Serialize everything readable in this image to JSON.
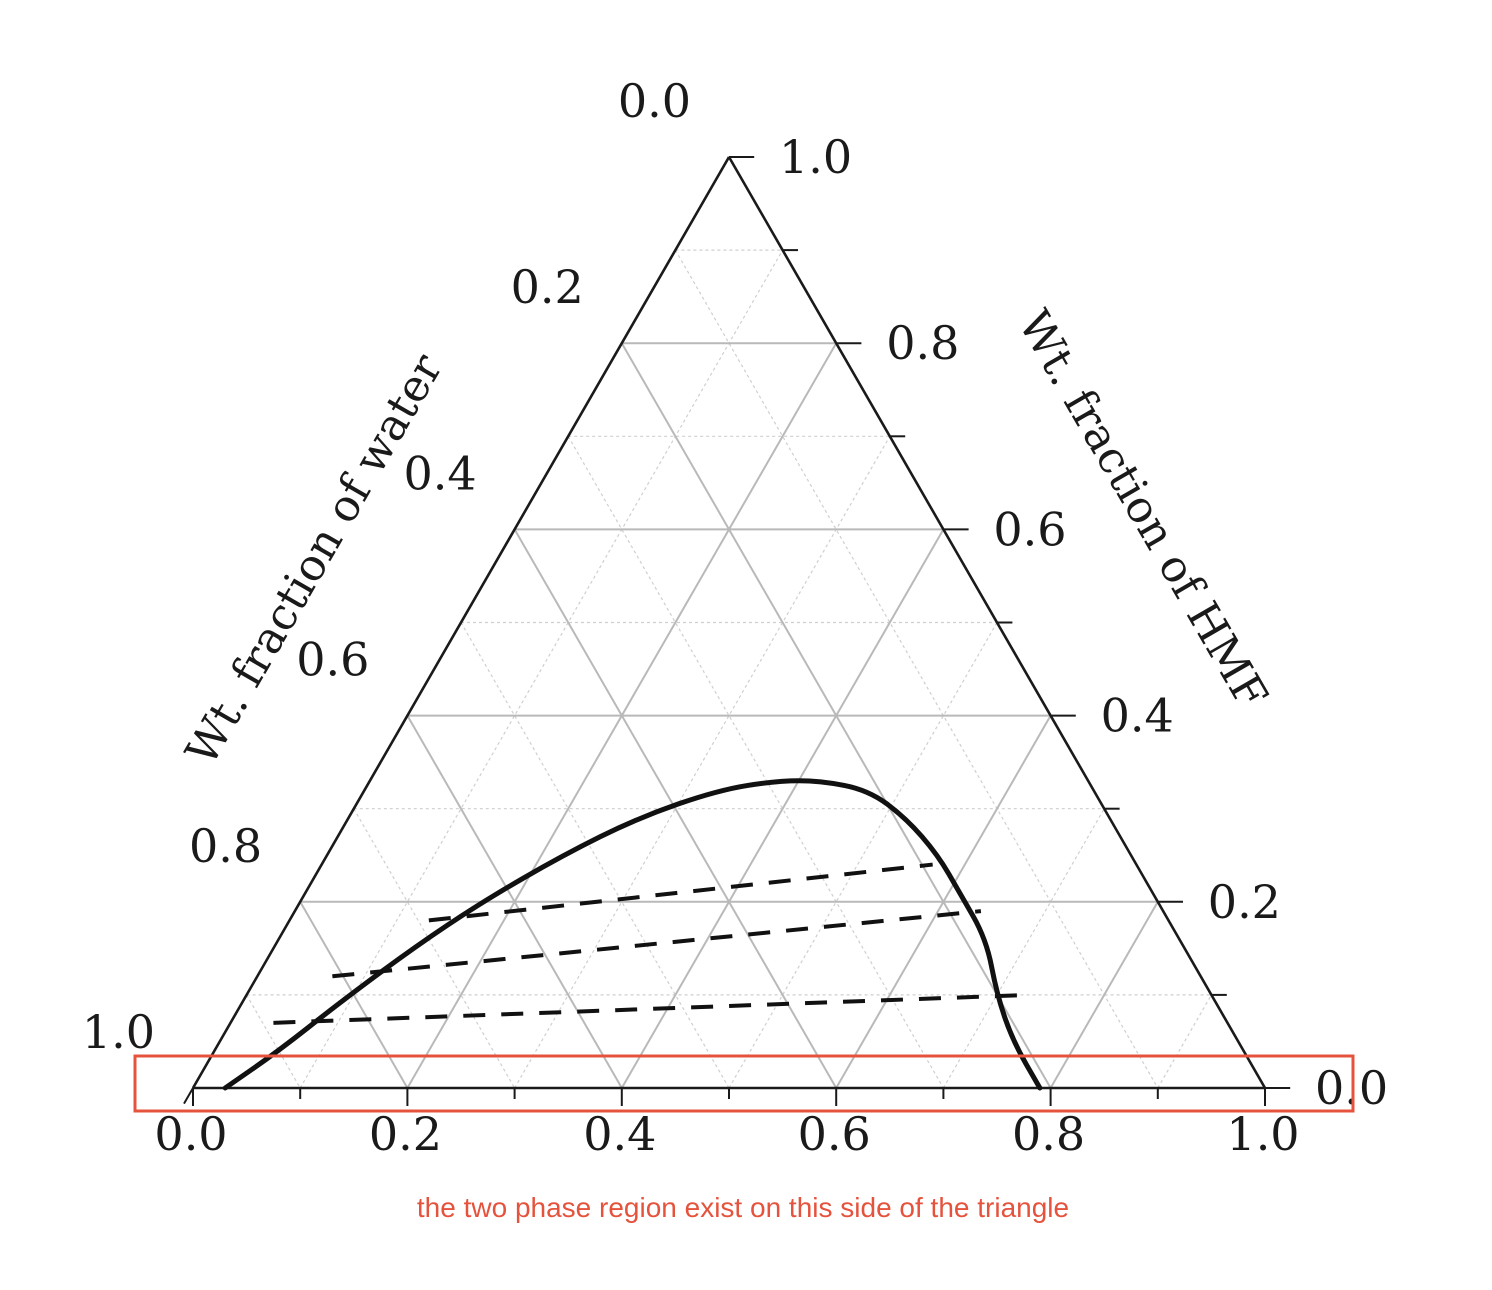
{
  "chart_data": {
    "type": "ternary",
    "bottom_axis": {
      "label": "",
      "ticks": [
        "0.0",
        "0.2",
        "0.4",
        "0.6",
        "0.8",
        "1.0"
      ]
    },
    "left_axis": {
      "label": "Wt. fraction of water",
      "ticks": [
        "0.0",
        "0.2",
        "0.4",
        "0.6",
        "0.8",
        "1.0"
      ]
    },
    "right_axis": {
      "label": "Wt. fraction of HMF",
      "ticks": [
        "1.0",
        "0.8",
        "0.6",
        "0.4",
        "0.2",
        "0.0"
      ]
    },
    "grid": true,
    "binodal_curve": {
      "style": "solid",
      "points": [
        {
          "bottom": 0.03,
          "hmf": 0.0
        },
        {
          "bottom": 0.06,
          "hmf": 0.04
        },
        {
          "bottom": 0.09,
          "hmf": 0.09
        },
        {
          "bottom": 0.13,
          "hmf": 0.15
        },
        {
          "bottom": 0.17,
          "hmf": 0.2
        },
        {
          "bottom": 0.22,
          "hmf": 0.25
        },
        {
          "bottom": 0.27,
          "hmf": 0.29
        },
        {
          "bottom": 0.33,
          "hmf": 0.32
        },
        {
          "bottom": 0.38,
          "hmf": 0.33
        },
        {
          "bottom": 0.42,
          "hmf": 0.33
        },
        {
          "bottom": 0.47,
          "hmf": 0.32
        },
        {
          "bottom": 0.52,
          "hmf": 0.29
        },
        {
          "bottom": 0.57,
          "hmf": 0.25
        },
        {
          "bottom": 0.61,
          "hmf": 0.21
        },
        {
          "bottom": 0.66,
          "hmf": 0.16
        },
        {
          "bottom": 0.7,
          "hmf": 0.1
        },
        {
          "bottom": 0.74,
          "hmf": 0.05
        },
        {
          "bottom": 0.79,
          "hmf": 0.0
        }
      ]
    },
    "tie_lines": [
      {
        "style": "dashed",
        "from": {
          "bottom": 0.13,
          "hmf": 0.18
        },
        "to": {
          "bottom": 0.57,
          "hmf": 0.24
        }
      },
      {
        "style": "dashed",
        "from": {
          "bottom": 0.07,
          "hmf": 0.12
        },
        "to": {
          "bottom": 0.64,
          "hmf": 0.19
        }
      },
      {
        "style": "dashed",
        "from": {
          "bottom": 0.04,
          "hmf": 0.07
        },
        "to": {
          "bottom": 0.73,
          "hmf": 0.1
        }
      }
    ],
    "annotation": {
      "text": "the two phase region exist on this side of the triangle",
      "color": "#e5533d"
    }
  },
  "colors": {
    "frame": "#1a1a1a",
    "grid_major": "#b9b9b9",
    "grid_minor": "#cfcfcf",
    "curve": "#111111",
    "highlight": "#e5533d"
  }
}
